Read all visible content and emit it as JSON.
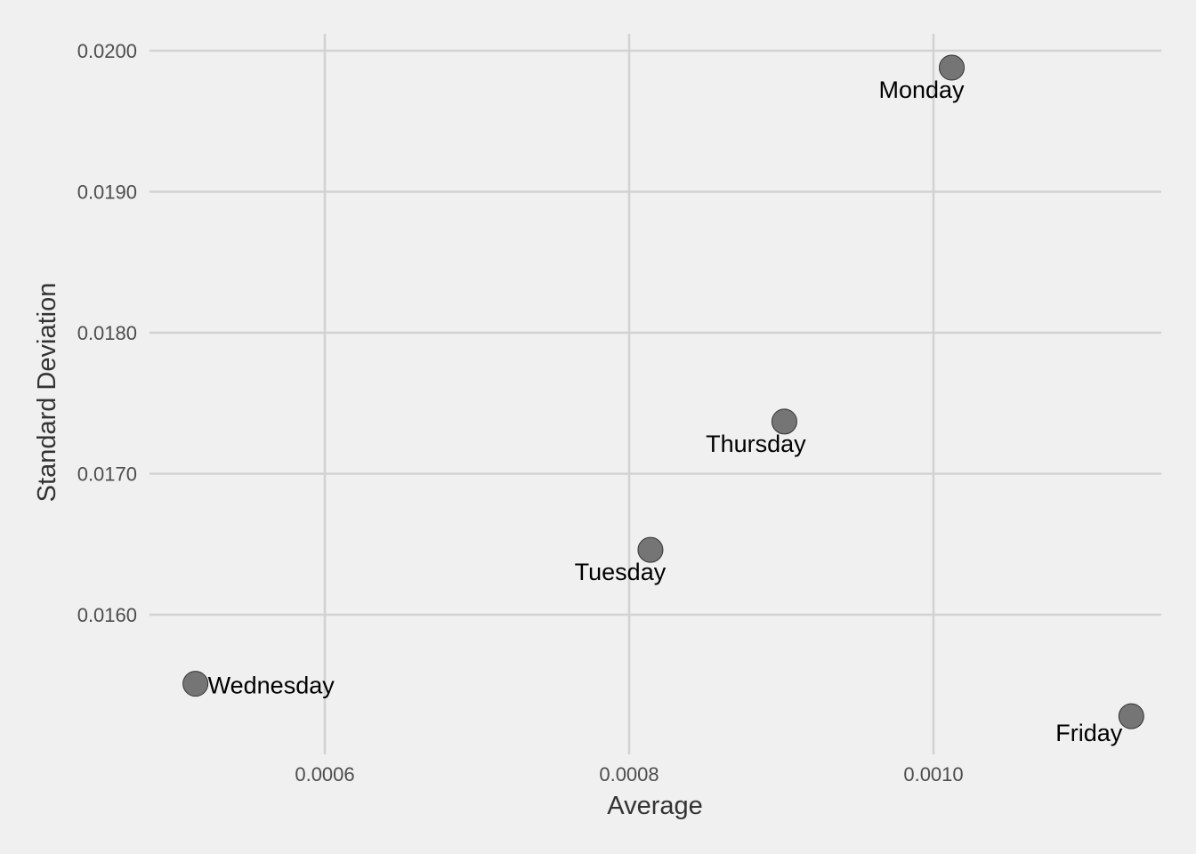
{
  "chart_data": {
    "type": "scatter",
    "xlabel": "Average",
    "ylabel": "Standard Deviation",
    "xlim": [
      0.00049,
      0.00116
    ],
    "ylim": [
      0.01528,
      0.02012
    ],
    "x_ticks": [
      0.0006,
      0.0008,
      0.001
    ],
    "x_tick_labels": [
      "0.0006",
      "0.0008",
      "0.0010"
    ],
    "y_ticks": [
      0.016,
      0.017,
      0.018,
      0.019,
      0.02
    ],
    "y_tick_labels": [
      "0.0160",
      "0.0170",
      "0.0180",
      "0.0190",
      "0.0200"
    ],
    "grid": true,
    "legend": "none",
    "colors": {
      "background": "#f0f0f0",
      "grid": "#d2d2d2",
      "point_fill": "#757575",
      "point_stroke": "#333333"
    },
    "points": [
      {
        "label": "Monday",
        "x": 0.001012,
        "y": 0.01988
      },
      {
        "label": "Tuesday",
        "x": 0.000814,
        "y": 0.01646
      },
      {
        "label": "Wednesday",
        "x": 0.000515,
        "y": 0.01551
      },
      {
        "label": "Thursday",
        "x": 0.000902,
        "y": 0.01737
      },
      {
        "label": "Friday",
        "x": 0.00113,
        "y": 0.01528
      }
    ]
  }
}
